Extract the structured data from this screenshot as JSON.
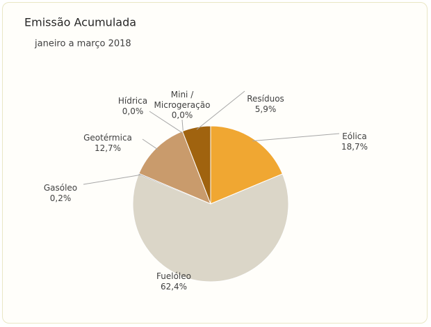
{
  "chart_data": {
    "type": "pie",
    "title": "Emissão Acumulada",
    "subtitle": "janeiro a março 2018",
    "categories": [
      "Eólica",
      "Fuelóleo",
      "Gasóleo",
      "Geotérmica",
      "Hídrica",
      "Mini / Microgeração",
      "Resíduos"
    ],
    "values": [
      18.7,
      62.4,
      0.2,
      12.7,
      0.0,
      0.0,
      5.9
    ],
    "value_labels": [
      "18,7%",
      "62,4%",
      "0,2%",
      "12,7%",
      "0,0%",
      "0,0%",
      "5,9%"
    ],
    "colors": [
      "#f0a732",
      "#dbd6c8",
      "#a8a8a8",
      "#c99b6c",
      "#7f7f7f",
      "#6f5020",
      "#a0630f"
    ]
  }
}
